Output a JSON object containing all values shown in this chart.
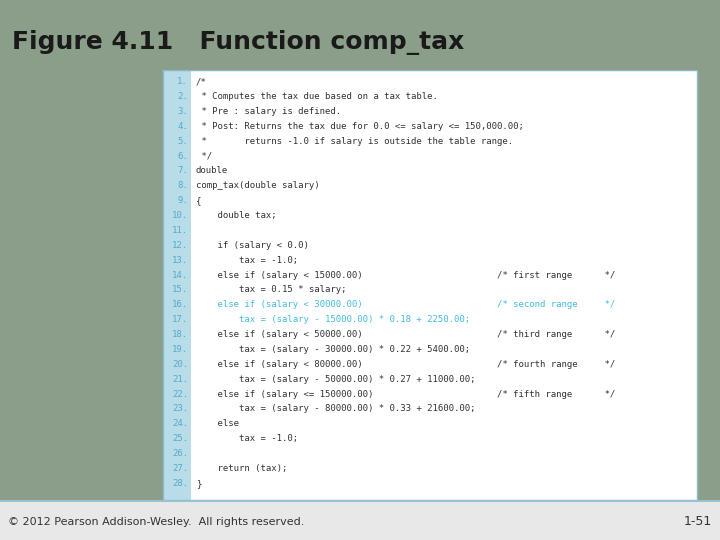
{
  "title": "Figure 4.11   Function comp_tax",
  "title_bg_top": "#8a9e8a",
  "title_bg_bot": "#6e8a6e",
  "title_fg": "#1a1a1a",
  "outer_bg": "#8a9e8a",
  "content_bg": "#ffffff",
  "line_num_bg": "#b8dce8",
  "line_num_fg": "#55aacc",
  "code_fg": "#333333",
  "highlight_fg": "#44bbdd",
  "footer_bg": "#ffffff",
  "footer_fg": "#333333",
  "border_color": "#88bbcc",
  "footer_text": "© 2012 Pearson Addison-Wesley.  All rights reserved.",
  "slide_num": "1-51",
  "lines": [
    {
      "num": "1.",
      "text": "/*",
      "highlight": false
    },
    {
      "num": "2.",
      "text": " * Computes the tax due based on a tax table.",
      "highlight": false
    },
    {
      "num": "3.",
      "text": " * Pre : salary is defined.",
      "highlight": false
    },
    {
      "num": "4.",
      "text": " * Post: Returns the tax due for 0.0 <= salary <= 150,000.00;",
      "highlight": false
    },
    {
      "num": "5.",
      "text": " *       returns -1.0 if salary is outside the table range.",
      "highlight": false
    },
    {
      "num": "6.",
      "text": " */",
      "highlight": false
    },
    {
      "num": "7.",
      "text": "double",
      "highlight": false
    },
    {
      "num": "8.",
      "text": "comp_tax(double salary)",
      "highlight": false
    },
    {
      "num": "9.",
      "text": "{",
      "highlight": false
    },
    {
      "num": "10.",
      "text": "    double tax;",
      "highlight": false
    },
    {
      "num": "11.",
      "text": "",
      "highlight": false
    },
    {
      "num": "12.",
      "text": "    if (salary < 0.0)",
      "highlight": false
    },
    {
      "num": "13.",
      "text": "        tax = -1.0;",
      "highlight": false
    },
    {
      "num": "14.",
      "text": "    else if (salary < 15000.00)                         /* first range      */",
      "highlight": false
    },
    {
      "num": "15.",
      "text": "        tax = 0.15 * salary;",
      "highlight": false
    },
    {
      "num": "16.",
      "text": "    else if (salary < 30000.00)                         /* second range     */",
      "highlight": true
    },
    {
      "num": "17.",
      "text": "        tax = (salary - 15000.00) * 0.18 + 2250.00;",
      "highlight": true
    },
    {
      "num": "18.",
      "text": "    else if (salary < 50000.00)                         /* third range      */",
      "highlight": false
    },
    {
      "num": "19.",
      "text": "        tax = (salary - 30000.00) * 0.22 + 5400.00;",
      "highlight": false
    },
    {
      "num": "20.",
      "text": "    else if (salary < 80000.00)                         /* fourth range     */",
      "highlight": false
    },
    {
      "num": "21.",
      "text": "        tax = (salary - 50000.00) * 0.27 + 11000.00;",
      "highlight": false
    },
    {
      "num": "22.",
      "text": "    else if (salary <= 150000.00)                       /* fifth range      */",
      "highlight": false
    },
    {
      "num": "23.",
      "text": "        tax = (salary - 80000.00) * 0.33 + 21600.00;",
      "highlight": false
    },
    {
      "num": "24.",
      "text": "    else",
      "highlight": false
    },
    {
      "num": "25.",
      "text": "        tax = -1.0;",
      "highlight": false
    },
    {
      "num": "26.",
      "text": "",
      "highlight": false
    },
    {
      "num": "27.",
      "text": "    return (tax);",
      "highlight": false
    },
    {
      "num": "28.",
      "text": "}",
      "highlight": false
    }
  ]
}
